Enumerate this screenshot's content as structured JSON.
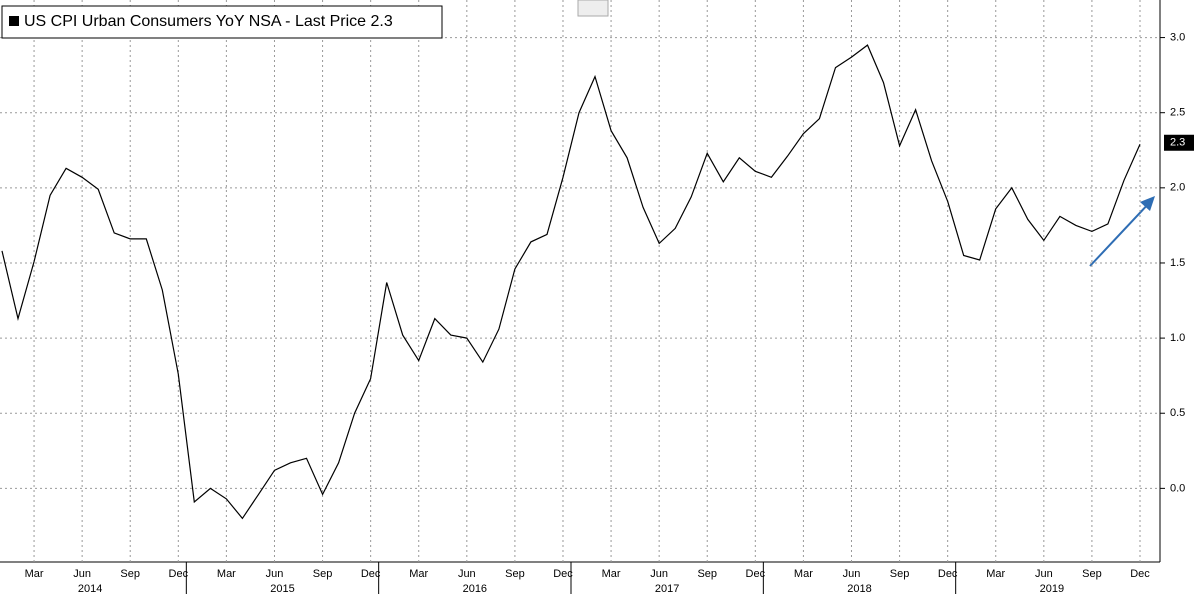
{
  "chart_data": {
    "type": "line",
    "title": "US CPI Urban Consumers YoY NSA - Last Price 2.3",
    "x": [
      "2014-01",
      "2014-02",
      "2014-03",
      "2014-04",
      "2014-05",
      "2014-06",
      "2014-07",
      "2014-08",
      "2014-09",
      "2014-10",
      "2014-11",
      "2014-12",
      "2015-01",
      "2015-02",
      "2015-03",
      "2015-04",
      "2015-05",
      "2015-06",
      "2015-07",
      "2015-08",
      "2015-09",
      "2015-10",
      "2015-11",
      "2015-12",
      "2016-01",
      "2016-02",
      "2016-03",
      "2016-04",
      "2016-05",
      "2016-06",
      "2016-07",
      "2016-08",
      "2016-09",
      "2016-10",
      "2016-11",
      "2016-12",
      "2017-01",
      "2017-02",
      "2017-03",
      "2017-04",
      "2017-05",
      "2017-06",
      "2017-07",
      "2017-08",
      "2017-09",
      "2017-10",
      "2017-11",
      "2017-12",
      "2018-01",
      "2018-02",
      "2018-03",
      "2018-04",
      "2018-05",
      "2018-06",
      "2018-07",
      "2018-08",
      "2018-09",
      "2018-10",
      "2018-11",
      "2018-12",
      "2019-01",
      "2019-02",
      "2019-03",
      "2019-04",
      "2019-05",
      "2019-06",
      "2019-07",
      "2019-08",
      "2019-09",
      "2019-10",
      "2019-11",
      "2019-12"
    ],
    "series": [
      {
        "color": "#000000",
        "values": [
          1.58,
          1.13,
          1.51,
          1.95,
          2.13,
          2.07,
          1.99,
          1.7,
          1.66,
          1.66,
          1.32,
          0.76,
          -0.09,
          0.0,
          -0.07,
          -0.2,
          -0.04,
          0.12,
          0.17,
          0.2,
          -0.04,
          0.17,
          0.5,
          0.73,
          1.37,
          1.02,
          0.85,
          1.13,
          1.02,
          1.0,
          0.84,
          1.06,
          1.46,
          1.64,
          1.69,
          2.07,
          2.5,
          2.74,
          2.38,
          2.2,
          1.87,
          1.63,
          1.73,
          1.94,
          2.23,
          2.04,
          2.2,
          2.11,
          2.07,
          2.21,
          2.36,
          2.46,
          2.8,
          2.87,
          2.95,
          2.7,
          2.28,
          2.52,
          2.18,
          1.91,
          1.55,
          1.52,
          1.86,
          2.0,
          1.79,
          1.65,
          1.81,
          1.75,
          1.71,
          1.76,
          2.05,
          2.29
        ]
      }
    ],
    "last_price": {
      "value": 2.3,
      "label": "2.3"
    },
    "xlim": [
      "2014-01",
      "2019-12"
    ],
    "xticks": [
      {
        "value": "2014-03",
        "label": "Mar"
      },
      {
        "value": "2014-06",
        "label": "Jun"
      },
      {
        "value": "2014-09",
        "label": "Sep"
      },
      {
        "value": "2014-12",
        "label": "Dec"
      },
      {
        "value": "2015-03",
        "label": "Mar"
      },
      {
        "value": "2015-06",
        "label": "Jun"
      },
      {
        "value": "2015-09",
        "label": "Sep"
      },
      {
        "value": "2015-12",
        "label": "Dec"
      },
      {
        "value": "2016-03",
        "label": "Mar"
      },
      {
        "value": "2016-06",
        "label": "Jun"
      },
      {
        "value": "2016-09",
        "label": "Sep"
      },
      {
        "value": "2016-12",
        "label": "Dec"
      },
      {
        "value": "2017-03",
        "label": "Mar"
      },
      {
        "value": "2017-06",
        "label": "Jun"
      },
      {
        "value": "2017-09",
        "label": "Sep"
      },
      {
        "value": "2017-12",
        "label": "Dec"
      },
      {
        "value": "2018-03",
        "label": "Mar"
      },
      {
        "value": "2018-06",
        "label": "Jun"
      },
      {
        "value": "2018-09",
        "label": "Sep"
      },
      {
        "value": "2018-12",
        "label": "Dec"
      },
      {
        "value": "2019-03",
        "label": "Mar"
      },
      {
        "value": "2019-06",
        "label": "Jun"
      },
      {
        "value": "2019-09",
        "label": "Sep"
      },
      {
        "value": "2019-12",
        "label": "Dec"
      }
    ],
    "years": [
      "2014",
      "2015",
      "2016",
      "2017",
      "2018",
      "2019"
    ],
    "ylim": [
      -0.49,
      3.25
    ],
    "yticks": [
      {
        "value": 0,
        "label": "0.0"
      },
      0.5,
      {
        "value": 1,
        "label": "1.0"
      },
      1.5,
      {
        "value": 2,
        "label": "2.0"
      },
      2.5,
      {
        "value": 3,
        "label": "3.0"
      }
    ],
    "grid": true
  }
}
